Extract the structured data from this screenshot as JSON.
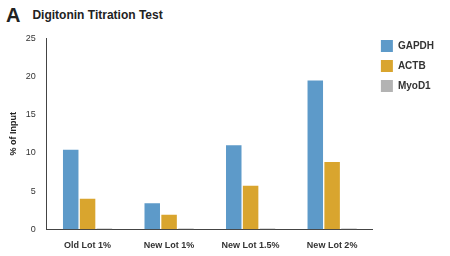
{
  "chart_data": {
    "type": "bar",
    "panel_label": "A",
    "title": "Digitonin Titration Test",
    "y_label": "% of Input",
    "categories": [
      "Old Lot 1%",
      "New Lot 1%",
      "New Lot 1.5%",
      "New Lot 2%"
    ],
    "series": [
      {
        "name": "GAPDH",
        "color": "#5d9ac9",
        "values": [
          10.4,
          3.4,
          11.0,
          19.5
        ]
      },
      {
        "name": "ACTB",
        "color": "#d9a52e",
        "values": [
          4.0,
          1.9,
          5.7,
          8.8
        ]
      },
      {
        "name": "MyoD1",
        "color": "#b3b3b3",
        "values": [
          0.1,
          0.1,
          0.1,
          0.1
        ]
      }
    ],
    "ylim": [
      0,
      25
    ],
    "yticks": [
      0,
      5,
      10,
      15,
      20,
      25
    ],
    "grid": false,
    "legend": "top-right"
  }
}
